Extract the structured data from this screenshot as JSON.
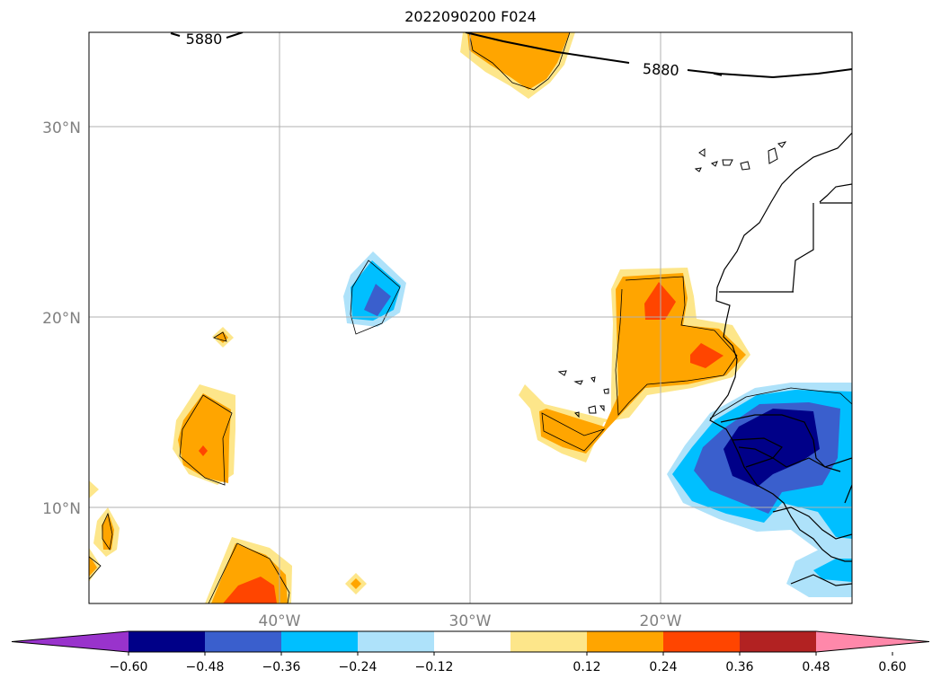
{
  "title": "2022090200 F024",
  "lat_labels": [
    "30°N",
    "20°N",
    "10°N"
  ],
  "lon_labels": [
    "40°W",
    "30°W",
    "20°W"
  ],
  "contour_labels": [
    "5880",
    "5880"
  ],
  "colorbar": {
    "ticks": [
      "−0.60",
      "−0.48",
      "−0.36",
      "−0.24",
      "−0.12",
      "0.12",
      "0.24",
      "0.36",
      "0.48",
      "0.60"
    ],
    "colors": [
      "#9933cc",
      "#000088",
      "#3a5fcd",
      "#00bfff",
      "#aee2fa",
      "#ffffff",
      "#fde68a",
      "#ffa500",
      "#ff4500",
      "#b22222",
      "#ff88aa"
    ]
  },
  "fill_colors": {
    "light_yellow": "#fde68a",
    "orange": "#ffa500",
    "red_orange": "#ff4500",
    "light_blue": "#aee2fa",
    "sky_blue": "#00bfff",
    "royal_blue": "#3a5fcd",
    "navy": "#000088"
  }
}
